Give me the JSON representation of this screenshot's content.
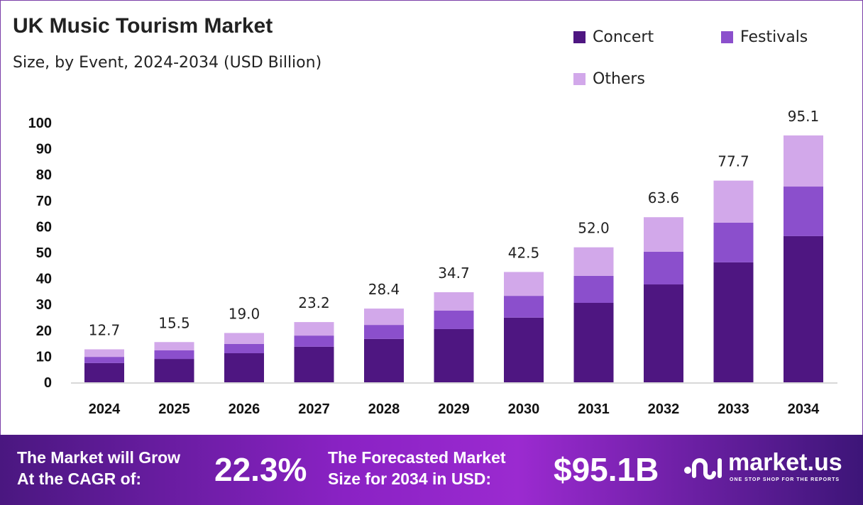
{
  "chart_data": {
    "type": "bar",
    "stacked": true,
    "title": "UK Music Tourism Market",
    "subtitle": "Size, by Event, 2024-2034 (USD Billion)",
    "categories": [
      "2024",
      "2025",
      "2026",
      "2027",
      "2028",
      "2029",
      "2030",
      "2031",
      "2032",
      "2033",
      "2034"
    ],
    "series": [
      {
        "name": "Concert",
        "color": "#4e1681",
        "values": [
          7.4,
          9.0,
          11.2,
          13.7,
          16.7,
          20.5,
          24.9,
          30.6,
          37.7,
          46.2,
          56.3
        ]
      },
      {
        "name": "Festivals",
        "color": "#8b4fcc",
        "values": [
          2.4,
          3.3,
          3.6,
          4.3,
          5.4,
          7.1,
          8.4,
          10.4,
          12.6,
          15.3,
          19.1
        ]
      },
      {
        "name": "Others",
        "color": "#d2a8ea",
        "values": [
          2.9,
          3.2,
          4.2,
          5.2,
          6.3,
          7.1,
          9.2,
          11.0,
          13.3,
          16.2,
          19.7
        ]
      }
    ],
    "totals": [
      "12.7",
      "15.5",
      "19.0",
      "23.2",
      "28.4",
      "34.7",
      "42.5",
      "52.0",
      "63.6",
      "77.7",
      "95.1"
    ],
    "yticks": [
      "0",
      "10",
      "20",
      "30",
      "40",
      "50",
      "60",
      "70",
      "80",
      "90",
      "100"
    ],
    "ylim": [
      0,
      100
    ],
    "grid": false,
    "legend": "top-right"
  },
  "banner": {
    "cagr_label_1": "The Market will Grow",
    "cagr_label_2": "At the CAGR of:",
    "cagr_value": "22.3%",
    "forecast_label_1": "The Forecasted Market",
    "forecast_label_2": "Size for 2034 in USD:",
    "forecast_value": "$95.1B",
    "logo_text": "market.us",
    "logo_tagline": "ONE STOP SHOP FOR THE REPORTS"
  }
}
